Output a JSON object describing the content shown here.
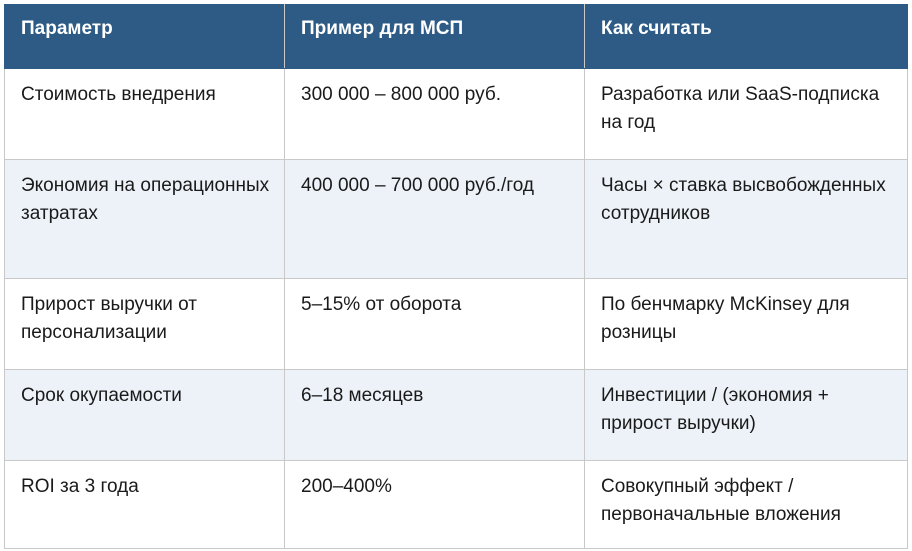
{
  "table": {
    "headers": [
      "Параметр",
      "Пример для МСП",
      "Как считать"
    ],
    "rows": [
      [
        "Стоимость внедрения",
        "300 000 – 800 000 руб.",
        "Разработка или SaaS-подписка на год"
      ],
      [
        "Экономия на операционных затратах",
        "400 000 – 700 000 руб./год",
        "Часы × ставка высвобожденных сотрудников"
      ],
      [
        "Прирост выручки от персонализации",
        "5–15% от оборота",
        "По бенчмарку McKinsey для розницы"
      ],
      [
        "Срок окупаемости",
        "6–18 месяцев",
        "Инвестиции / (экономия + прирост выручки)"
      ],
      [
        "ROI за 3 года",
        "200–400%",
        "Совокупный эффект / первоначальные вложения"
      ]
    ]
  },
  "colors": {
    "header_bg": "#2d5b86",
    "header_text": "#ffffff",
    "stripe_bg": "#edf2f8",
    "border": "#c9c9c9"
  }
}
